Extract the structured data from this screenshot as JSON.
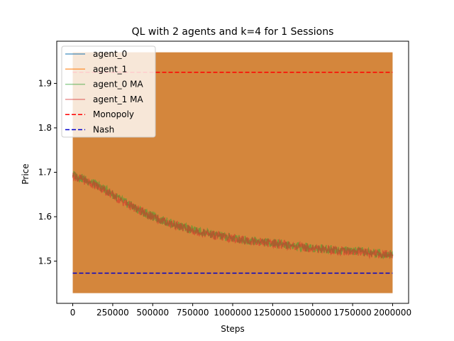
{
  "chart_data": {
    "type": "line",
    "title": "QL with 2 agents and k=4 for 1 Sessions",
    "xlabel": "Steps",
    "ylabel": "Price",
    "xlim": [
      -100000,
      2100000
    ],
    "ylim": [
      1.405,
      1.995
    ],
    "xticks": [
      0,
      250000,
      500000,
      750000,
      1000000,
      1250000,
      1500000,
      1750000,
      2000000
    ],
    "xtick_labels": [
      "0",
      "250000",
      "500000",
      "750000",
      "1000000",
      "1250000",
      "1500000",
      "1750000",
      "2000000"
    ],
    "yticks": [
      1.5,
      1.6,
      1.7,
      1.8,
      1.9
    ],
    "ytick_labels": [
      "1.5",
      "1.6",
      "1.7",
      "1.8",
      "1.9"
    ],
    "grid": false,
    "legend_position": "top-left",
    "raw_band": {
      "x": [
        0,
        2000000
      ],
      "y_min": 1.428,
      "y_max": 1.97
    },
    "series": [
      {
        "name": "agent_0",
        "color": "#1f77b4",
        "style": "solid",
        "alpha": 0.7,
        "kind": "raw"
      },
      {
        "name": "agent_1",
        "color": "#ff7f0e",
        "style": "solid",
        "alpha": 0.7,
        "kind": "raw"
      },
      {
        "name": "agent_0 MA",
        "color": "#2ca02c",
        "style": "solid",
        "alpha": 0.5,
        "x": [
          0,
          100000,
          200000,
          300000,
          400000,
          500000,
          600000,
          700000,
          800000,
          900000,
          1000000,
          1100000,
          1200000,
          1300000,
          1400000,
          1500000,
          1600000,
          1700000,
          1800000,
          1900000,
          2000000
        ],
        "values": [
          1.695,
          1.68,
          1.662,
          1.638,
          1.618,
          1.6,
          1.587,
          1.575,
          1.566,
          1.558,
          1.552,
          1.547,
          1.543,
          1.539,
          1.534,
          1.53,
          1.527,
          1.524,
          1.521,
          1.518,
          1.515
        ]
      },
      {
        "name": "agent_1 MA",
        "color": "#d62728",
        "style": "solid",
        "alpha": 0.5,
        "x": [
          0,
          100000,
          200000,
          300000,
          400000,
          500000,
          600000,
          700000,
          800000,
          900000,
          1000000,
          1100000,
          1200000,
          1300000,
          1400000,
          1500000,
          1600000,
          1700000,
          1800000,
          1900000,
          2000000
        ],
        "values": [
          1.693,
          1.678,
          1.66,
          1.636,
          1.617,
          1.599,
          1.586,
          1.574,
          1.565,
          1.557,
          1.551,
          1.546,
          1.542,
          1.538,
          1.533,
          1.529,
          1.526,
          1.523,
          1.52,
          1.517,
          1.514
        ]
      },
      {
        "name": "Monopoly",
        "color": "#ff0000",
        "style": "dashed",
        "x": [
          0,
          2000000
        ],
        "values": [
          1.925,
          1.925
        ]
      },
      {
        "name": "Nash",
        "color": "#0000cc",
        "style": "dashed",
        "x": [
          0,
          2000000
        ],
        "values": [
          1.473,
          1.473
        ]
      }
    ],
    "colors": {
      "raw_band": "#d4863c",
      "axis": "#000000"
    }
  }
}
